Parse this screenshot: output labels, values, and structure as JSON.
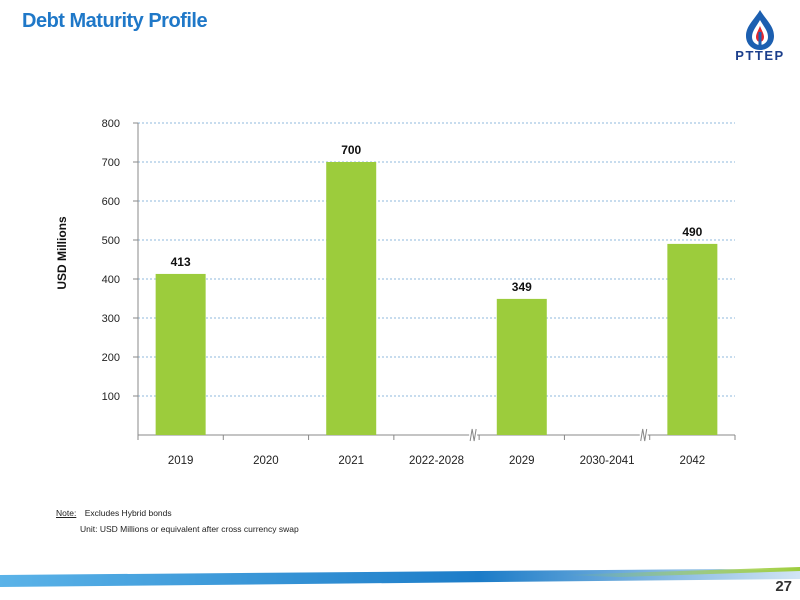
{
  "title": "Debt Maturity Profile",
  "logo_text": "PTTEP",
  "note_label": "Note:",
  "note_text": "Excludes Hybrid bonds",
  "unit_text": "Unit: USD Millions or equivalent after cross currency swap",
  "page_number": "27",
  "colors": {
    "title": "#1f78c8",
    "bar": "#9ccc3c",
    "grid": "#8fb8de",
    "logo": "#1c3f8c"
  },
  "chart_data": {
    "type": "bar",
    "categories": [
      "2019",
      "2020",
      "2021",
      "2022-2028",
      "2029",
      "2030-2041",
      "2042"
    ],
    "values": [
      413,
      null,
      700,
      null,
      349,
      null,
      490
    ],
    "data_labels": [
      "413",
      "",
      "700",
      "",
      "349",
      "",
      "490"
    ],
    "ylabel": "USD Millions",
    "xlabel": "",
    "ylim": [
      0,
      800
    ],
    "yticks": [
      100,
      200,
      300,
      400,
      500,
      600,
      700,
      800
    ],
    "axis_breaks_after": [
      "2022-2028",
      "2030-2041"
    ],
    "grid": true
  }
}
